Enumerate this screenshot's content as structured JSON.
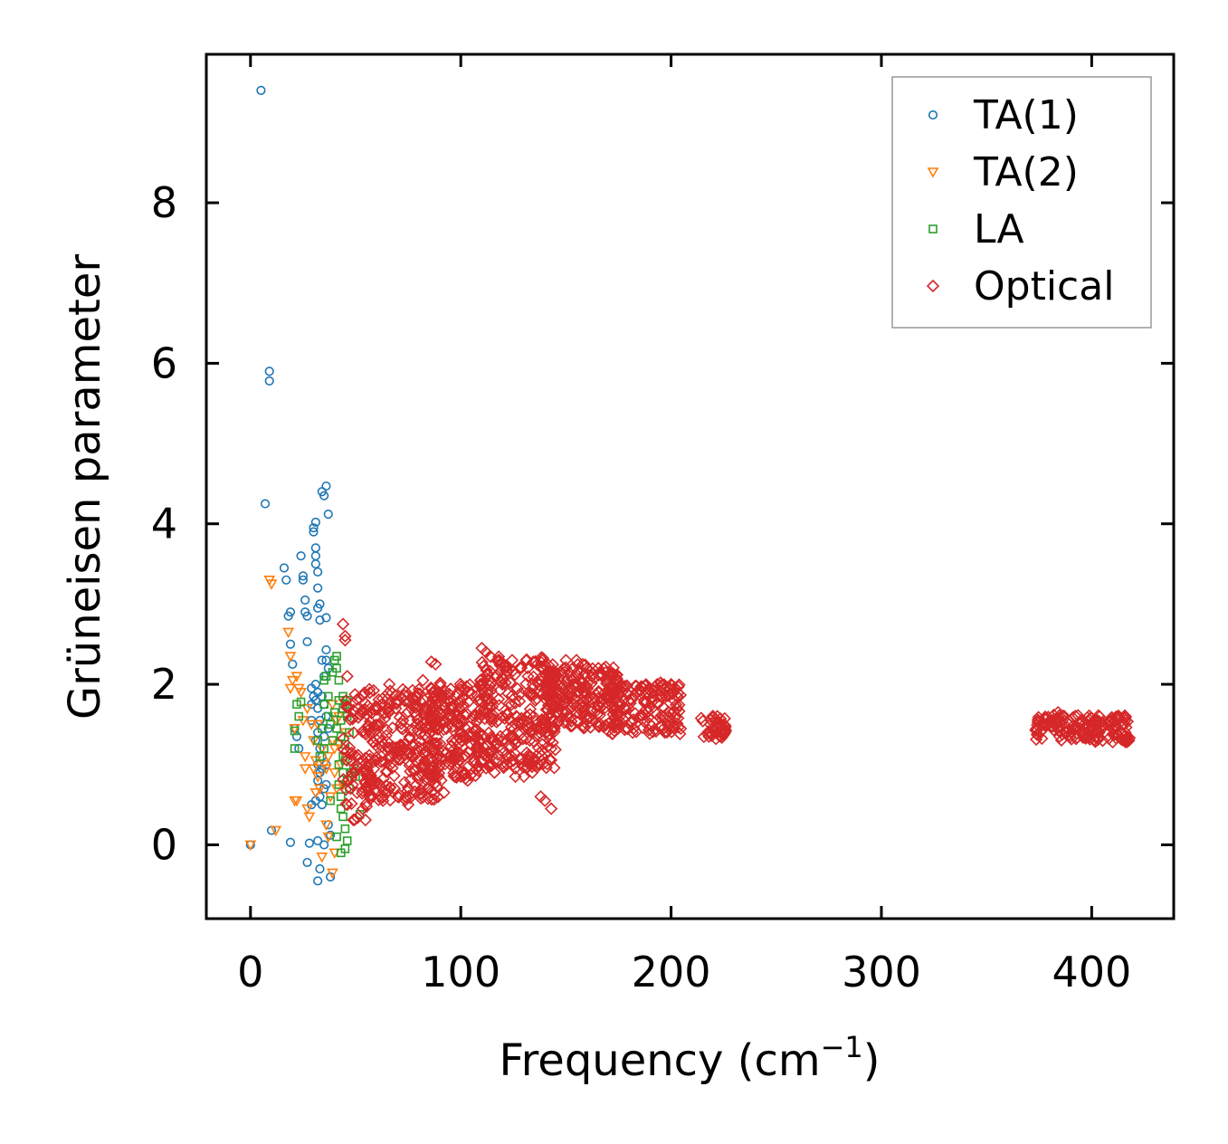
{
  "chart_data": {
    "type": "scatter",
    "title": "",
    "xlabel": "Frequency (cm",
    "xlabel_superscript": "−1",
    "xlabel_close": ")",
    "ylabel": "Grüneisen parameter",
    "xlim": [
      -21,
      439
    ],
    "ylim": [
      -0.92,
      9.85
    ],
    "xticks": [
      0,
      100,
      200,
      300,
      400
    ],
    "xtick_labels": [
      "0",
      "100",
      "200",
      "300",
      "400"
    ],
    "yticks": [
      0,
      2,
      4,
      6,
      8
    ],
    "ytick_labels": [
      "0",
      "2",
      "4",
      "6",
      "8"
    ],
    "grid": false,
    "legend_position": "top-right",
    "series": [
      {
        "name": "TA(1)",
        "marker": "circle",
        "color": "#1f77b4",
        "points": [
          [
            0,
            0
          ],
          [
            5,
            9.4
          ],
          [
            7,
            4.25
          ],
          [
            9,
            5.9
          ],
          [
            9,
            5.78
          ],
          [
            10,
            0.18
          ],
          [
            16,
            3.45
          ],
          [
            17,
            3.3
          ],
          [
            18,
            2.85
          ],
          [
            19,
            2.9
          ],
          [
            19,
            2.5
          ],
          [
            19,
            0.03
          ],
          [
            20,
            2.25
          ],
          [
            21,
            1.45
          ],
          [
            22,
            1.35
          ],
          [
            23,
            1.2
          ],
          [
            24,
            3.6
          ],
          [
            25,
            3.3
          ],
          [
            25,
            3.35
          ],
          [
            26,
            3.05
          ],
          [
            26,
            2.9
          ],
          [
            27,
            2.85
          ],
          [
            27,
            2.53
          ],
          [
            27,
            -0.22
          ],
          [
            28,
            0.02
          ],
          [
            29,
            1.95
          ],
          [
            29,
            1.75
          ],
          [
            29,
            1.55
          ],
          [
            29,
            0.5
          ],
          [
            30,
            3.95
          ],
          [
            30,
            3.9
          ],
          [
            30,
            1.85
          ],
          [
            31,
            4.02
          ],
          [
            31,
            3.7
          ],
          [
            31,
            3.6
          ],
          [
            31,
            3.5
          ],
          [
            31,
            2.0
          ],
          [
            31,
            1.8
          ],
          [
            31,
            1.3
          ],
          [
            31,
            0.55
          ],
          [
            32,
            3.4
          ],
          [
            32,
            3.2
          ],
          [
            32,
            2.95
          ],
          [
            32,
            1.9
          ],
          [
            32,
            1.7
          ],
          [
            32,
            1.4
          ],
          [
            32,
            1.0
          ],
          [
            32,
            0.8
          ],
          [
            32,
            0.05
          ],
          [
            32,
            -0.45
          ],
          [
            33,
            3.0
          ],
          [
            33,
            2.8
          ],
          [
            33,
            1.55
          ],
          [
            33,
            1.2
          ],
          [
            33,
            0.9
          ],
          [
            33,
            0.6
          ],
          [
            33,
            -0.3
          ],
          [
            34,
            4.4
          ],
          [
            34,
            2.3
          ],
          [
            34,
            1.85
          ],
          [
            34,
            1.1
          ],
          [
            34,
            0.95
          ],
          [
            34,
            0.5
          ],
          [
            35,
            4.35
          ],
          [
            35,
            2.1
          ],
          [
            35,
            1.75
          ],
          [
            35,
            1.35
          ],
          [
            35,
            0.7
          ],
          [
            35,
            0.0
          ],
          [
            36,
            4.47
          ],
          [
            36,
            2.43
          ],
          [
            36,
            2.3
          ],
          [
            36,
            2.83
          ],
          [
            36,
            1.6
          ],
          [
            36,
            1.0
          ],
          [
            36,
            0.75
          ],
          [
            37,
            4.12
          ],
          [
            37,
            2.2
          ],
          [
            37,
            1.45
          ],
          [
            37,
            0.25
          ],
          [
            38,
            0.12
          ],
          [
            38,
            -0.4
          ]
        ]
      },
      {
        "name": "TA(2)",
        "marker": "triangle-down",
        "color": "#ff7f0e",
        "points": [
          [
            0,
            0
          ],
          [
            9,
            3.3
          ],
          [
            10,
            3.25
          ],
          [
            12,
            0.18
          ],
          [
            18,
            2.65
          ],
          [
            19,
            2.35
          ],
          [
            19,
            1.95
          ],
          [
            20,
            2.05
          ],
          [
            21,
            0.55
          ],
          [
            21,
            1.45
          ],
          [
            22,
            2.1
          ],
          [
            22,
            0.55
          ],
          [
            23,
            1.95
          ],
          [
            24,
            1.9
          ],
          [
            25,
            1.55
          ],
          [
            26,
            1.1
          ],
          [
            26,
            0.95
          ],
          [
            27,
            1.7
          ],
          [
            27,
            0.45
          ],
          [
            28,
            0.35
          ],
          [
            29,
            1.5
          ],
          [
            30,
            1.3
          ],
          [
            30,
            0.95
          ],
          [
            31,
            1.05
          ],
          [
            31,
            0.65
          ],
          [
            32,
            1.5
          ],
          [
            32,
            0.85
          ],
          [
            33,
            0.7
          ],
          [
            34,
            1.2
          ],
          [
            34,
            -0.15
          ],
          [
            35,
            1.0
          ],
          [
            36,
            0.25
          ],
          [
            36,
            0.95
          ],
          [
            37,
            1.1
          ],
          [
            37,
            0.1
          ],
          [
            38,
            0.6
          ],
          [
            39,
            1.75
          ],
          [
            39,
            1.3
          ],
          [
            39,
            -0.35
          ],
          [
            40,
            1.2
          ],
          [
            40,
            0.9
          ],
          [
            40,
            -0.1
          ],
          [
            41,
            1.55
          ],
          [
            41,
            0.7
          ],
          [
            42,
            1.6
          ],
          [
            42,
            1.25
          ],
          [
            43,
            1.0
          ],
          [
            44,
            1.8
          ],
          [
            44,
            0.75
          ],
          [
            45,
            1.4
          ],
          [
            45,
            1.1
          ]
        ]
      },
      {
        "name": "LA",
        "marker": "square",
        "color": "#2ca02c",
        "points": [
          [
            21,
            1.2
          ],
          [
            21,
            1.42
          ],
          [
            22,
            1.75
          ],
          [
            23,
            1.6
          ],
          [
            24,
            1.78
          ],
          [
            32,
            1.3
          ],
          [
            33,
            1.1
          ],
          [
            34,
            1.45
          ],
          [
            35,
            1.75
          ],
          [
            35,
            1.2
          ],
          [
            35,
            2.05
          ],
          [
            36,
            2.1
          ],
          [
            37,
            1.85
          ],
          [
            37,
            1.6
          ],
          [
            38,
            1.5
          ],
          [
            38,
            0.55
          ],
          [
            39,
            2.15
          ],
          [
            39,
            1.3
          ],
          [
            40,
            1.65
          ],
          [
            40,
            2.3
          ],
          [
            41,
            2.35
          ],
          [
            41,
            2.2
          ],
          [
            41,
            1.45
          ],
          [
            41,
            0.1
          ],
          [
            42,
            1.8
          ],
          [
            42,
            2.05
          ],
          [
            42,
            1.0
          ],
          [
            42,
            0.75
          ],
          [
            43,
            1.55
          ],
          [
            43,
            1.35
          ],
          [
            43,
            0.6
          ],
          [
            43,
            0.45
          ],
          [
            43,
            -0.1
          ],
          [
            44,
            1.85
          ],
          [
            44,
            1.7
          ],
          [
            44,
            1.1
          ],
          [
            44,
            0.9
          ],
          [
            44,
            0.35
          ],
          [
            45,
            1.75
          ],
          [
            45,
            1.25
          ],
          [
            45,
            1.05
          ],
          [
            45,
            0.2
          ],
          [
            45,
            -0.05
          ],
          [
            46,
            1.8
          ],
          [
            46,
            1.6
          ],
          [
            46,
            0.8
          ],
          [
            46,
            0.05
          ],
          [
            47,
            1.4
          ],
          [
            47,
            0.7
          ],
          [
            48,
            0.9
          ],
          [
            49,
            0.95
          ],
          [
            50,
            0.85
          ],
          [
            52,
            0.38
          ]
        ]
      },
      {
        "name": "Optical",
        "marker": "diamond",
        "color": "#d62728",
        "clusters": [
          {
            "x": [
              44,
              60
            ],
            "y": [
              0.3,
              1.9
            ],
            "n": 90
          },
          {
            "x": [
              55,
              90
            ],
            "y": [
              0.55,
              1.95
            ],
            "n": 260
          },
          {
            "x": [
              85,
              110
            ],
            "y": [
              0.8,
              2.05
            ],
            "n": 200
          },
          {
            "x": [
              108,
              145
            ],
            "y": [
              0.95,
              2.35
            ],
            "n": 280
          },
          {
            "x": [
              140,
              175
            ],
            "y": [
              1.45,
              2.25
            ],
            "n": 220
          },
          {
            "x": [
              170,
              205
            ],
            "y": [
              1.38,
              2.0
            ],
            "n": 160
          },
          {
            "x": [
              214,
              226
            ],
            "y": [
              1.32,
              1.62
            ],
            "n": 40
          },
          {
            "x": [
              373,
              418
            ],
            "y": [
              1.28,
              1.62
            ],
            "n": 170
          }
        ],
        "points": [
          [
            44,
            2.75
          ],
          [
            45,
            2.55
          ],
          [
            45,
            2.6
          ],
          [
            46,
            2.1
          ],
          [
            58,
            0.6
          ],
          [
            63,
            0.55
          ],
          [
            66,
            2.0
          ],
          [
            70,
            0.6
          ],
          [
            75,
            0.5
          ],
          [
            82,
            2.05
          ],
          [
            86,
            2.28
          ],
          [
            88,
            2.25
          ],
          [
            92,
            0.65
          ],
          [
            100,
            0.85
          ],
          [
            110,
            2.45
          ],
          [
            112,
            2.4
          ],
          [
            114,
            2.35
          ],
          [
            116,
            0.9
          ],
          [
            122,
            1.0
          ],
          [
            126,
            0.85
          ],
          [
            130,
            0.85
          ],
          [
            134,
            0.9
          ],
          [
            138,
            0.6
          ],
          [
            140,
            0.55
          ],
          [
            143,
            0.45
          ],
          [
            150,
            2.3
          ],
          [
            155,
            2.3
          ],
          [
            160,
            1.5
          ],
          [
            195,
            2.02
          ],
          [
            200,
            2.0
          ],
          [
            203,
            1.85
          ],
          [
            197,
            1.4
          ],
          [
            218,
            1.35
          ],
          [
            222,
            1.6
          ],
          [
            225,
            1.5
          ],
          [
            384,
            1.65
          ],
          [
            395,
            1.55
          ],
          [
            405,
            1.45
          ],
          [
            410,
            1.28
          ],
          [
            416,
            1.4
          ]
        ]
      }
    ]
  }
}
